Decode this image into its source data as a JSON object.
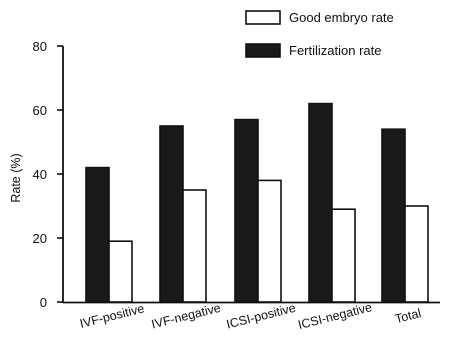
{
  "chart_data": {
    "type": "bar",
    "categories": [
      "IVF-positive",
      "IVF-negative",
      "ICSI-positive",
      "ICSI-negative",
      "Total"
    ],
    "series": [
      {
        "name": "Fertilization rate",
        "values": [
          42,
          55,
          57,
          62,
          54
        ],
        "color": "#1a1a1a"
      },
      {
        "name": "Good embryo rate",
        "values": [
          19,
          35,
          38,
          29,
          30
        ],
        "color": "#ffffff"
      }
    ],
    "ylabel": "Rate (%)",
    "ylim": [
      0,
      80
    ],
    "yticks": [
      0,
      20,
      40,
      60,
      80
    ],
    "grid": false,
    "legend_position": "top-right",
    "legend_order": [
      "Good embryo rate",
      "Fertilization rate"
    ]
  }
}
